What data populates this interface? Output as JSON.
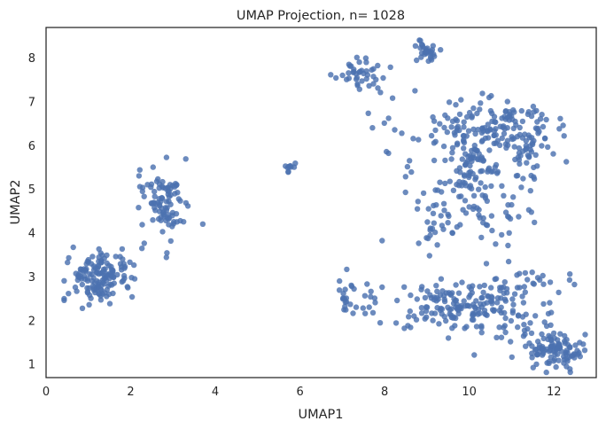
{
  "chart_data": {
    "type": "scatter",
    "title": "UMAP Projection, n= 1028",
    "xlabel": "UMAP1",
    "ylabel": "UMAP2",
    "xlim": [
      0,
      13
    ],
    "ylim": [
      0.7,
      8.7
    ],
    "xticks": [
      0,
      2,
      4,
      6,
      8,
      10,
      12
    ],
    "yticks": [
      1,
      2,
      3,
      4,
      5,
      6,
      7,
      8
    ],
    "grid": false,
    "marker_color": "#4c72b0",
    "clusters": [
      {
        "cx": 1.3,
        "cy": 3.0,
        "sx": 0.4,
        "sy": 0.32,
        "n": 150
      },
      {
        "cx": 2.8,
        "cy": 4.8,
        "sx": 0.28,
        "sy": 0.45,
        "n": 95
      },
      {
        "cx": 5.75,
        "cy": 5.5,
        "sx": 0.07,
        "sy": 0.07,
        "n": 10
      },
      {
        "cx": 7.4,
        "cy": 7.6,
        "sx": 0.25,
        "sy": 0.2,
        "n": 40
      },
      {
        "cx": 9.0,
        "cy": 8.15,
        "sx": 0.15,
        "sy": 0.12,
        "n": 30
      },
      {
        "cx": 10.6,
        "cy": 6.5,
        "sx": 0.7,
        "sy": 0.25,
        "n": 110
      },
      {
        "cx": 10.1,
        "cy": 5.5,
        "sx": 0.35,
        "sy": 0.5,
        "n": 100
      },
      {
        "cx": 11.3,
        "cy": 5.9,
        "sx": 0.35,
        "sy": 0.35,
        "n": 55
      },
      {
        "cx": 9.3,
        "cy": 4.3,
        "sx": 0.25,
        "sy": 0.35,
        "n": 35
      },
      {
        "cx": 12.1,
        "cy": 1.35,
        "sx": 0.3,
        "sy": 0.22,
        "n": 95
      },
      {
        "cx": 9.8,
        "cy": 2.35,
        "sx": 0.7,
        "sy": 0.3,
        "n": 150
      },
      {
        "cx": 11.2,
        "cy": 2.4,
        "sx": 0.6,
        "sy": 0.5,
        "n": 75
      },
      {
        "cx": 7.3,
        "cy": 2.5,
        "sx": 0.3,
        "sy": 0.25,
        "n": 30
      },
      {
        "cx": 10.7,
        "cy": 4.4,
        "sx": 0.4,
        "sy": 0.4,
        "n": 33
      },
      {
        "cx": 8.3,
        "cy": 6.0,
        "sx": 0.4,
        "sy": 0.8,
        "n": 20
      }
    ]
  }
}
